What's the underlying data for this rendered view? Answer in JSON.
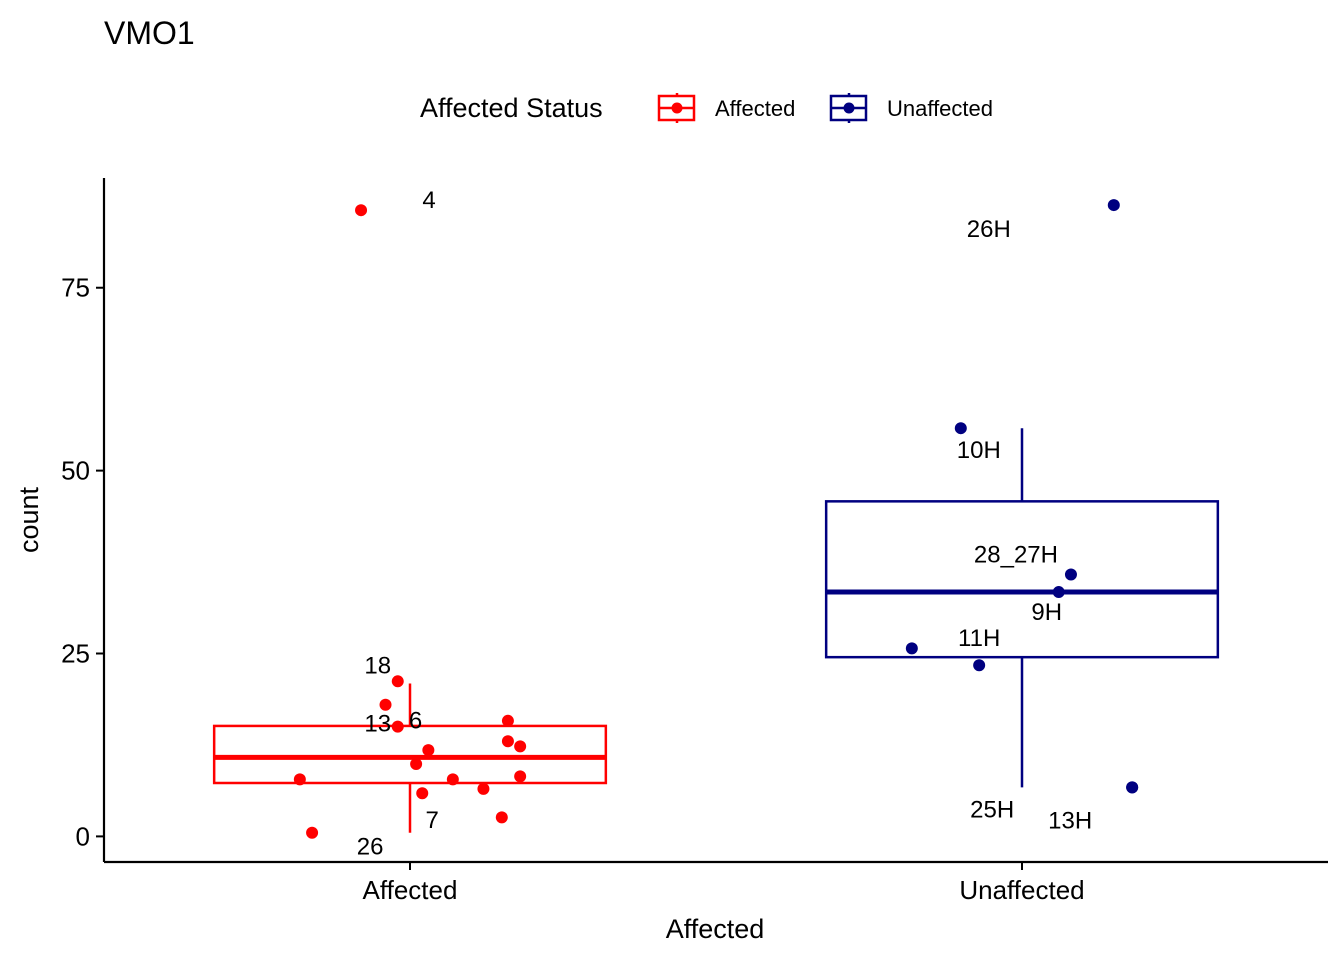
{
  "chart_data": {
    "type": "boxplot",
    "title": "VMO1",
    "xlabel": "Affected",
    "ylabel": "count",
    "categories": [
      "Affected",
      "Unaffected"
    ],
    "yticks": [
      0,
      25,
      50,
      75
    ],
    "ylim": [
      -3.5,
      90
    ],
    "grid": false,
    "legend": {
      "title": "Affected Status",
      "position": "top",
      "entries": [
        "Affected",
        "Unaffected"
      ]
    },
    "series": [
      {
        "name": "Affected",
        "category": "Affected",
        "color": "#ff0000",
        "box": {
          "whisker_low": 0.5,
          "q1": 7.3,
          "median": 10.8,
          "q3": 15.1,
          "whisker_high": 20.9
        },
        "points": [
          {
            "y": 85.6,
            "jitter": -0.08,
            "label": "4"
          },
          {
            "y": 21.2,
            "jitter": -0.02,
            "label": "18"
          },
          {
            "y": 18.0,
            "jitter": -0.04,
            "label": "6"
          },
          {
            "y": 15.0,
            "jitter": -0.02,
            "label": "13"
          },
          {
            "y": 15.8,
            "jitter": 0.16,
            "label": ""
          },
          {
            "y": 13.0,
            "jitter": 0.16,
            "label": ""
          },
          {
            "y": 12.3,
            "jitter": 0.18,
            "label": ""
          },
          {
            "y": 11.8,
            "jitter": 0.03,
            "label": ""
          },
          {
            "y": 9.9,
            "jitter": 0.01,
            "label": ""
          },
          {
            "y": 8.2,
            "jitter": 0.18,
            "label": ""
          },
          {
            "y": 7.8,
            "jitter": 0.07,
            "label": ""
          },
          {
            "y": 7.8,
            "jitter": -0.18,
            "label": ""
          },
          {
            "y": 6.5,
            "jitter": 0.12,
            "label": ""
          },
          {
            "y": 5.9,
            "jitter": 0.02,
            "label": "7"
          },
          {
            "y": 2.6,
            "jitter": 0.15,
            "label": ""
          },
          {
            "y": 0.5,
            "jitter": -0.16,
            "label": "26"
          }
        ]
      },
      {
        "name": "Unaffected",
        "category": "Unaffected",
        "color": "#000080",
        "box": {
          "whisker_low": 6.7,
          "q1": 24.5,
          "median": 33.4,
          "q3": 45.8,
          "whisker_high": 55.8
        },
        "points": [
          {
            "y": 86.3,
            "jitter": 0.15,
            "label": "26H"
          },
          {
            "y": 55.8,
            "jitter": -0.1,
            "label": "10H"
          },
          {
            "y": 35.8,
            "jitter": 0.08,
            "label": "28_27H"
          },
          {
            "y": 33.4,
            "jitter": 0.06,
            "label": "9H"
          },
          {
            "y": 25.7,
            "jitter": -0.18,
            "label": ""
          },
          {
            "y": 23.4,
            "jitter": -0.07,
            "label": "11H"
          },
          {
            "y": 6.7,
            "jitter": 0.18,
            "label": "13H"
          },
          {
            "y": 6.7,
            "jitter": 0.18,
            "label": "25H"
          }
        ]
      }
    ]
  }
}
